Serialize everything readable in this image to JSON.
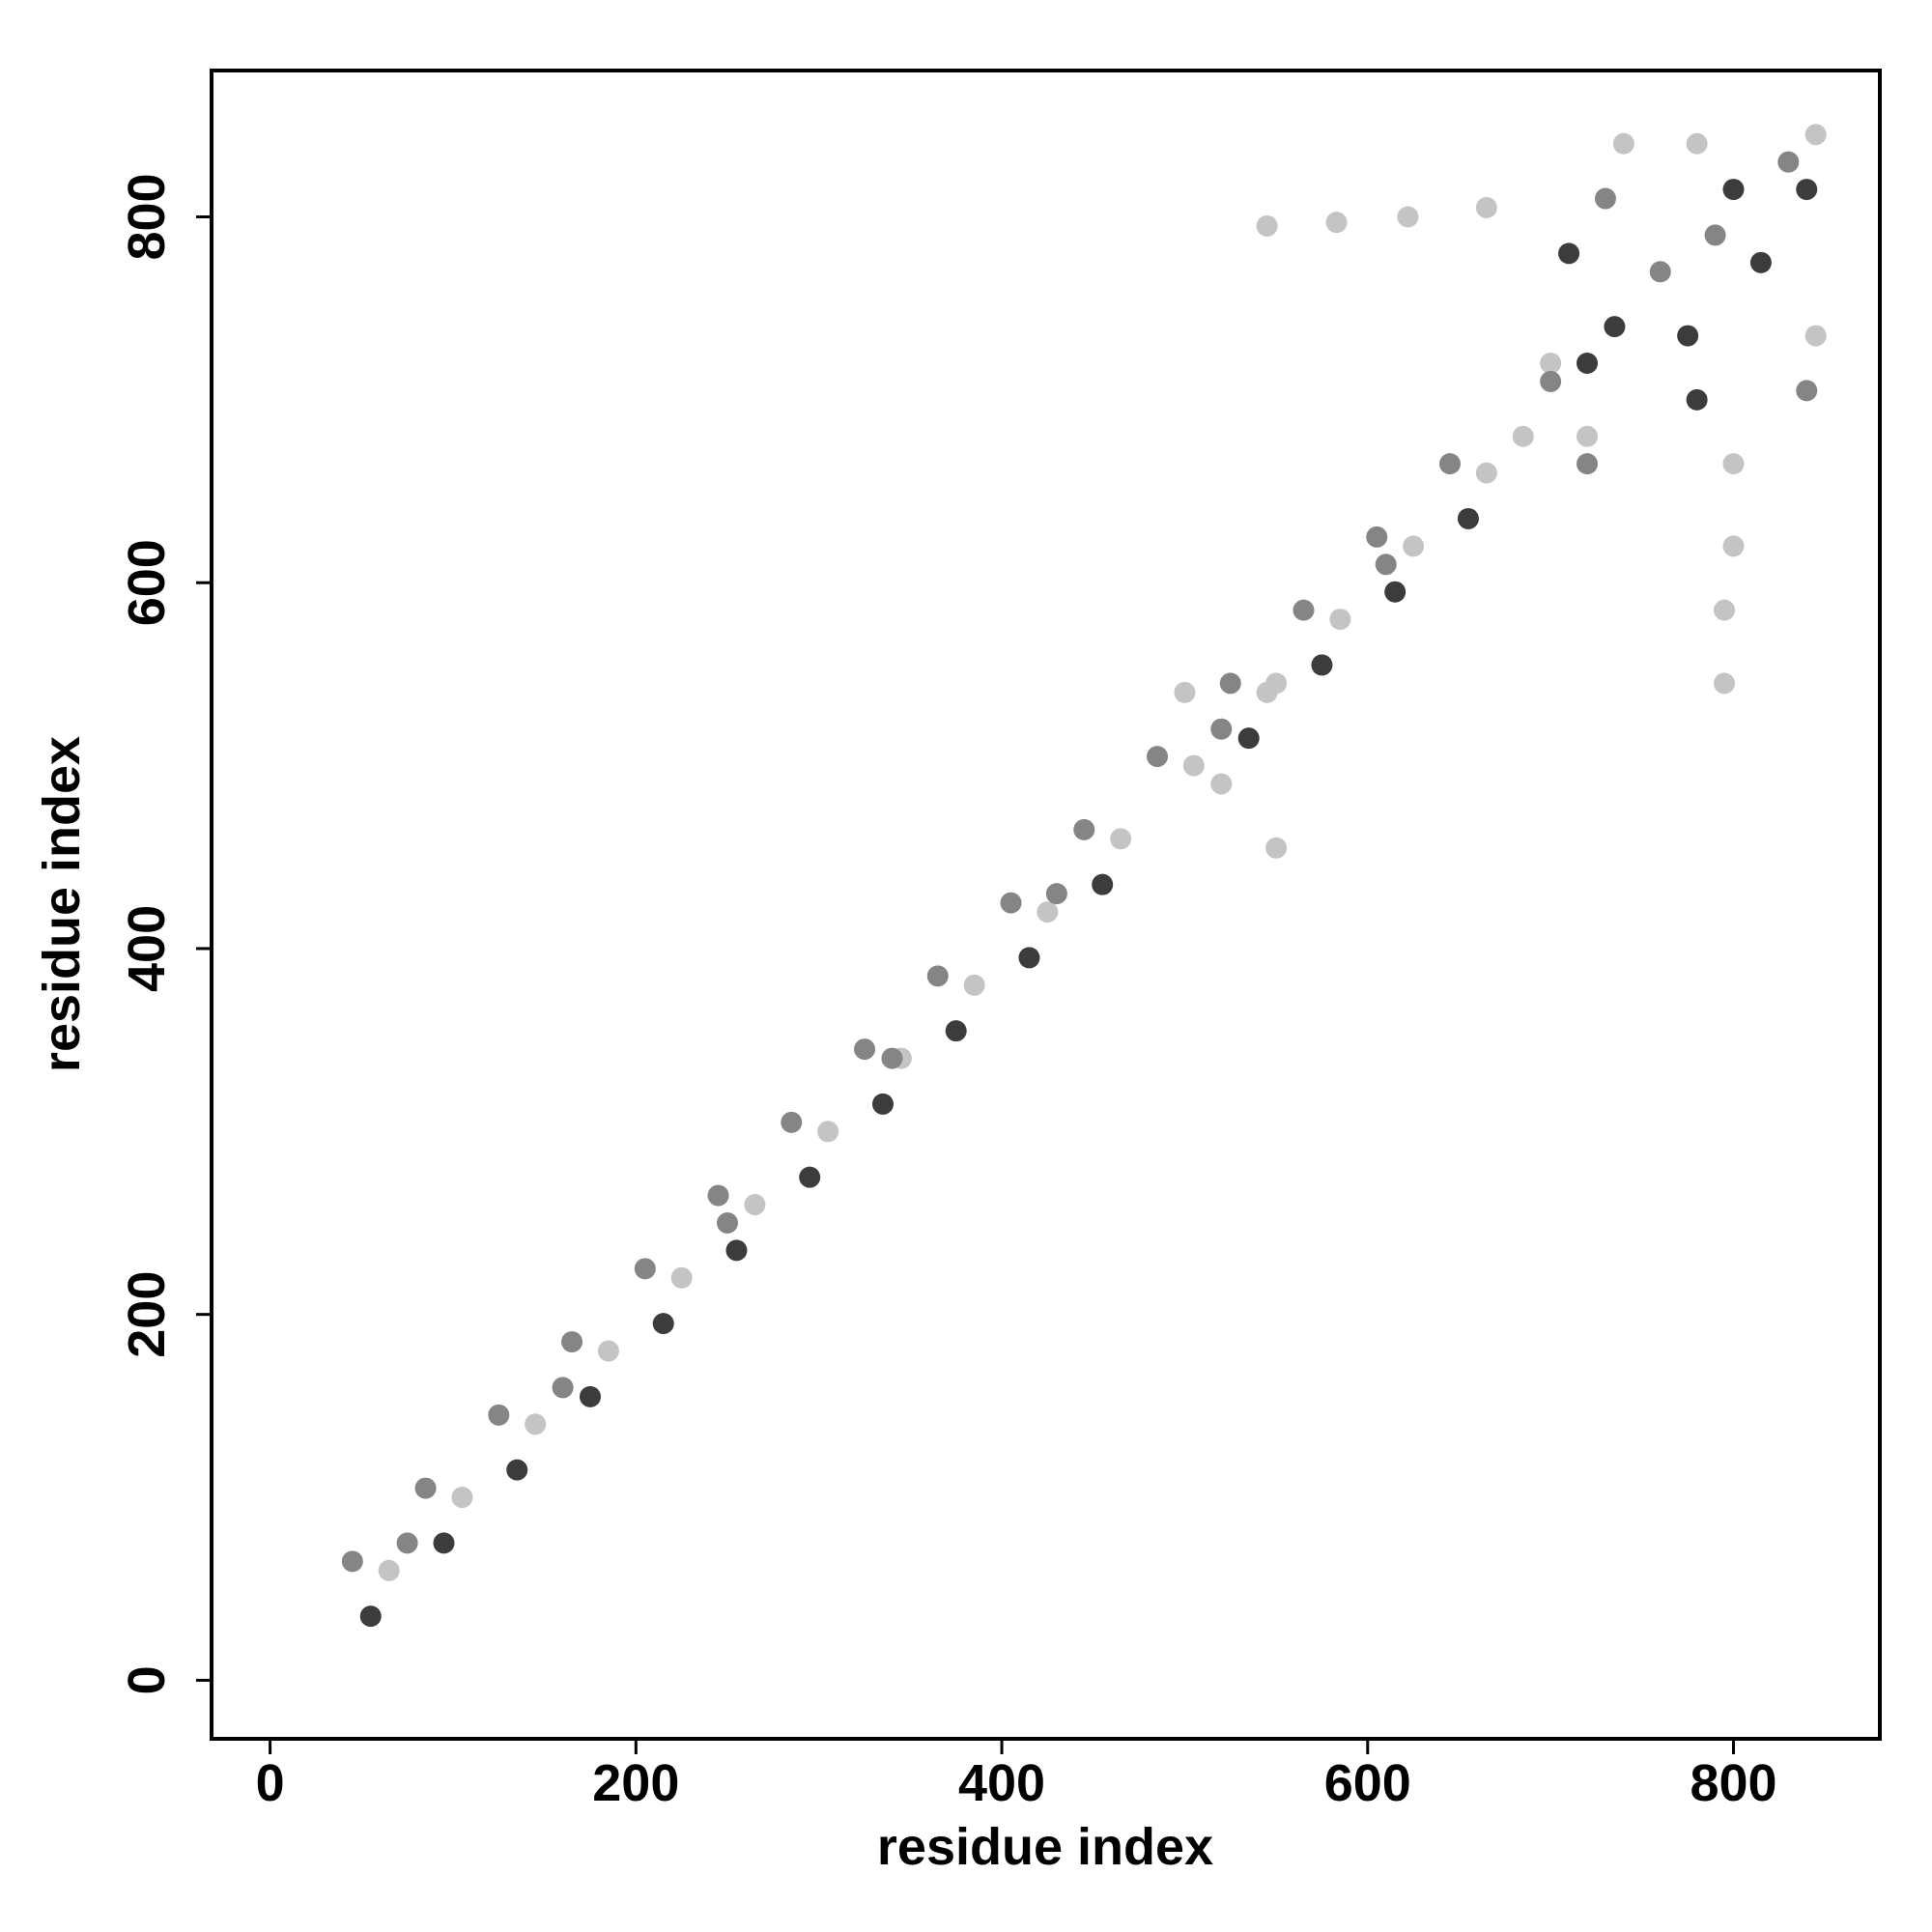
{
  "chart_data": {
    "type": "scatter",
    "x_label": "residue index",
    "y_label": "residue index",
    "xlim": [
      -32,
      880
    ],
    "ylim": [
      -32,
      880
    ],
    "xticks": [
      0,
      200,
      400,
      600,
      800
    ],
    "yticks": [
      0,
      200,
      400,
      600,
      800
    ],
    "grid": false,
    "series": [
      {
        "color": "#c4c4c4",
        "x": [
          65,
          105,
          145,
          185,
          225,
          265,
          305,
          345,
          385,
          425,
          465,
          505,
          545,
          585,
          625,
          665,
          685,
          545,
          583,
          622,
          665,
          700,
          550,
          550,
          795,
          795,
          800,
          800,
          720,
          740,
          845,
          845,
          780,
          520,
          500
        ],
        "values": [
          60,
          100,
          140,
          180,
          220,
          260,
          300,
          340,
          380,
          420,
          460,
          500,
          540,
          580,
          620,
          660,
          680,
          795,
          797,
          800,
          805,
          720,
          545,
          455,
          545,
          585,
          620,
          665,
          680,
          840,
          845,
          735,
          840,
          490,
          540
        ]
      },
      {
        "color": "#858585",
        "x": [
          45,
          85,
          125,
          165,
          205,
          245,
          285,
          325,
          365,
          405,
          445,
          485,
          525,
          565,
          605,
          645,
          75,
          160,
          250,
          340,
          430,
          520,
          610,
          730,
          760,
          790,
          830,
          700,
          840,
          720
        ],
        "values": [
          65,
          105,
          145,
          185,
          225,
          265,
          305,
          345,
          385,
          425,
          465,
          505,
          545,
          585,
          625,
          665,
          75,
          160,
          250,
          340,
          430,
          520,
          610,
          810,
          770,
          790,
          830,
          710,
          705,
          665
        ]
      },
      {
        "color": "#3c3c3c",
        "x": [
          55,
          95,
          135,
          175,
          215,
          255,
          295,
          335,
          375,
          415,
          455,
          535,
          575,
          615,
          655,
          710,
          735,
          775,
          800,
          815,
          840,
          720,
          780
        ],
        "values": [
          35,
          75,
          115,
          155,
          195,
          235,
          275,
          315,
          355,
          395,
          435,
          515,
          555,
          595,
          635,
          780,
          740,
          735,
          815,
          775,
          815,
          720,
          700
        ]
      }
    ]
  }
}
